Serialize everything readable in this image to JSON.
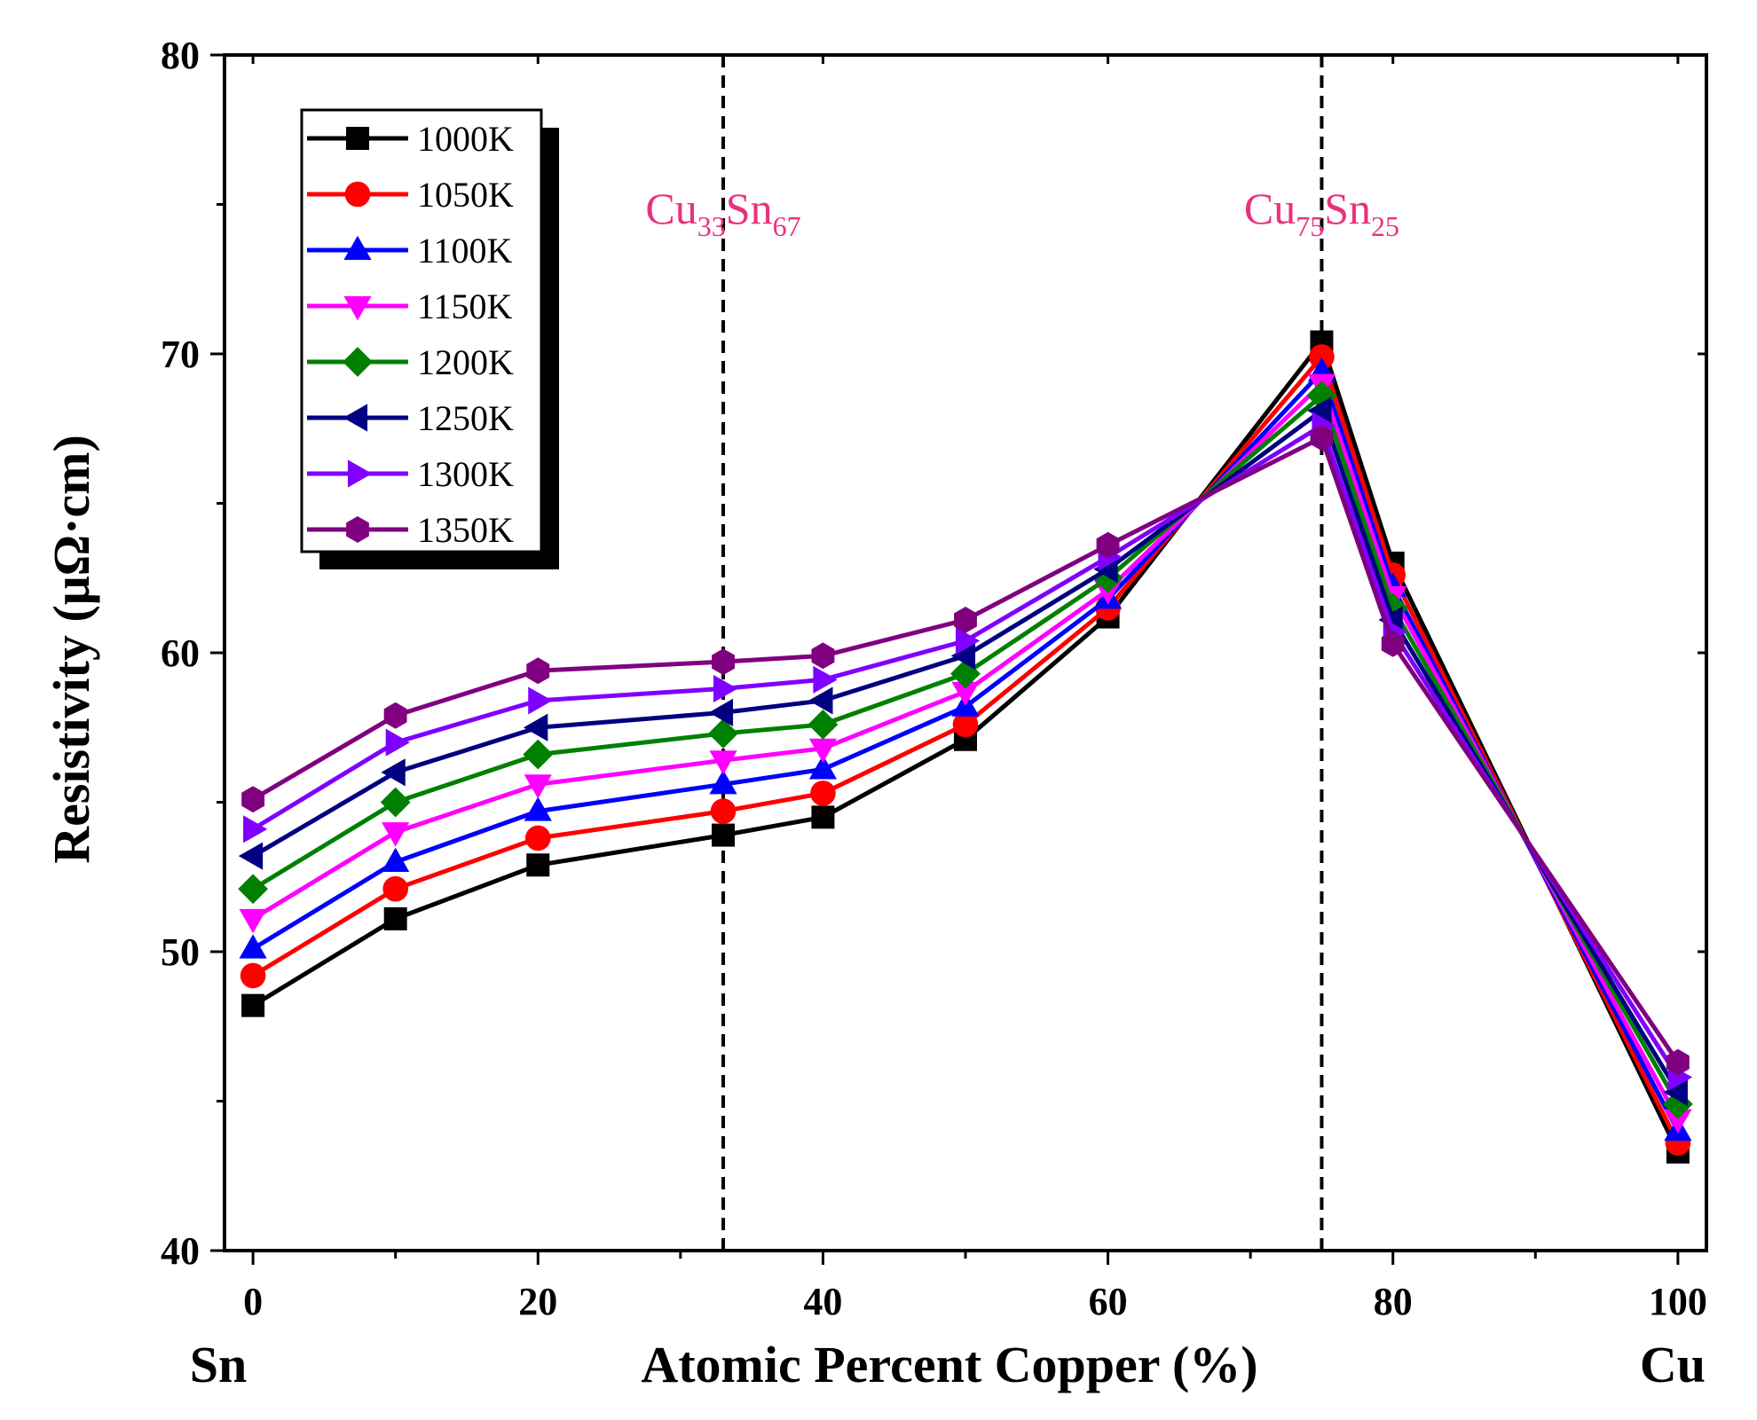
{
  "chart_data": {
    "type": "line",
    "title": "",
    "xlabel": "Atomic Percent Copper (%)",
    "ylabel": "Resistivity (μΩ·cm)",
    "xlim": [
      -2,
      102
    ],
    "ylim": [
      40,
      80
    ],
    "x_ticks": [
      0,
      20,
      40,
      60,
      80,
      100
    ],
    "x_tick_labels": [
      "0",
      "20",
      "40",
      "60",
      "80",
      "100"
    ],
    "y_ticks": [
      40,
      50,
      60,
      70,
      80
    ],
    "y_tick_labels": [
      "40",
      "50",
      "60",
      "70",
      "80"
    ],
    "x_end_labels": {
      "left": "Sn",
      "right": "Cu"
    },
    "x": [
      0,
      10,
      20,
      33,
      40,
      50,
      60,
      75,
      80,
      100
    ],
    "series": [
      {
        "name": "1000K",
        "color": "#000000",
        "marker": "square",
        "values": [
          48.2,
          51.1,
          52.9,
          53.9,
          54.5,
          57.1,
          61.2,
          70.4,
          63.0,
          43.3
        ]
      },
      {
        "name": "1050K",
        "color": "#ff0000",
        "marker": "circle",
        "values": [
          49.2,
          52.1,
          53.8,
          54.7,
          55.3,
          57.6,
          61.5,
          69.9,
          62.6,
          43.6
        ]
      },
      {
        "name": "1100K",
        "color": "#0000ff",
        "marker": "triangle-up",
        "values": [
          50.1,
          53.0,
          54.7,
          55.6,
          56.1,
          58.2,
          61.8,
          69.4,
          62.2,
          44.0
        ]
      },
      {
        "name": "1150K",
        "color": "#ff00ff",
        "marker": "triangle-down",
        "values": [
          51.1,
          54.0,
          55.6,
          56.4,
          56.8,
          58.7,
          62.1,
          69.0,
          61.9,
          44.4
        ]
      },
      {
        "name": "1200K",
        "color": "#008000",
        "marker": "diamond",
        "values": [
          52.1,
          55.0,
          56.6,
          57.3,
          57.6,
          59.3,
          62.5,
          68.6,
          61.5,
          44.9
        ]
      },
      {
        "name": "1250K",
        "color": "#000080",
        "marker": "triangle-left",
        "values": [
          53.2,
          56.0,
          57.5,
          58.0,
          58.4,
          59.9,
          62.8,
          68.1,
          61.1,
          45.3
        ]
      },
      {
        "name": "1300K",
        "color": "#8000ff",
        "marker": "triangle-right",
        "values": [
          54.1,
          57.0,
          58.4,
          58.8,
          59.1,
          60.4,
          63.2,
          67.6,
          60.7,
          45.8
        ]
      },
      {
        "name": "1350K",
        "color": "#800080",
        "marker": "hexagon",
        "values": [
          55.1,
          57.9,
          59.4,
          59.7,
          59.9,
          61.1,
          63.6,
          67.2,
          60.3,
          46.3
        ]
      }
    ],
    "reference_lines": [
      {
        "x": 33,
        "style": "dashed",
        "label": {
          "base1": "Cu",
          "sub1": "33",
          "base2": "Sn",
          "sub2": "67"
        }
      },
      {
        "x": 75,
        "style": "dashed",
        "label": {
          "base1": "Cu",
          "sub1": "75",
          "base2": "Sn",
          "sub2": "25"
        }
      }
    ],
    "label_color": "#e8327e",
    "legend_position": "top-left",
    "grid": false
  }
}
